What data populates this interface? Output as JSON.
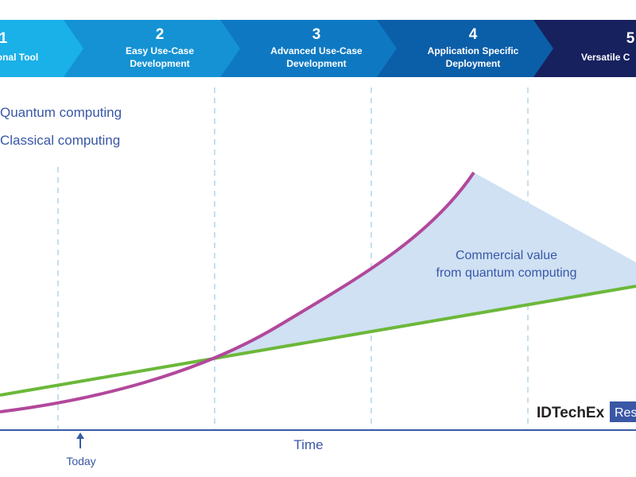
{
  "stages": [
    {
      "number": "1",
      "lines": [
        "onal Tool"
      ]
    },
    {
      "number": "2",
      "lines": [
        "Easy Use-Case",
        "Development"
      ]
    },
    {
      "number": "3",
      "lines": [
        "Advanced Use-Case",
        "Development"
      ]
    },
    {
      "number": "4",
      "lines": [
        "Application Specific",
        "Deployment"
      ]
    },
    {
      "number": "5",
      "lines": [
        "Versatile C"
      ]
    }
  ],
  "legend": [
    "Quantum computing",
    "Classical computing"
  ],
  "annotation": [
    "Commercial value",
    "from quantum computing"
  ],
  "axis": {
    "label": "Time",
    "marker": "Today"
  },
  "brand": {
    "name": "IDTechEx",
    "tag": "Res"
  }
}
